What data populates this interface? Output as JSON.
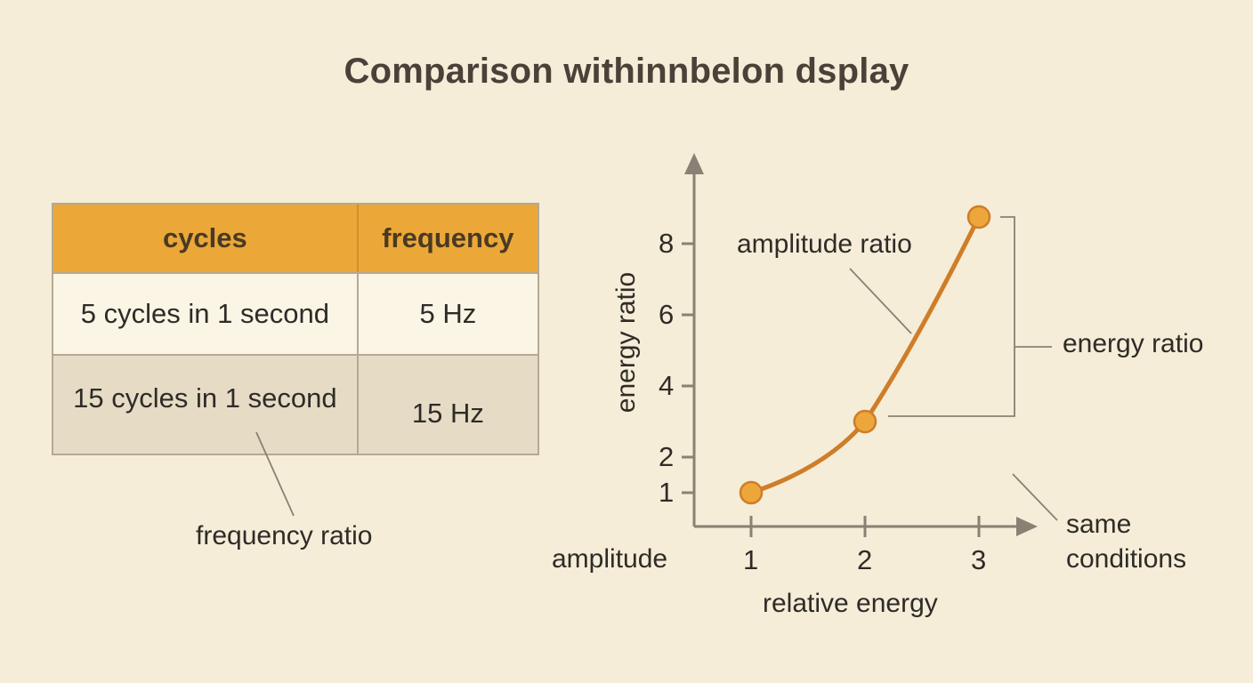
{
  "title": "Comparison withinnbelon dsplay",
  "table": {
    "headers": [
      "cycles",
      "frequency"
    ],
    "rows": [
      [
        "5 cycles in 1 second",
        "5 Hz"
      ],
      [
        "15 cycles in 1 second",
        "15 Hz"
      ]
    ],
    "annotation": "frequency ratio"
  },
  "chart_data": {
    "type": "line",
    "x": [
      1,
      2,
      3
    ],
    "y": [
      1,
      3,
      8.75
    ],
    "xlim": [
      0.5,
      3.5
    ],
    "ylim": [
      0,
      9.5
    ],
    "xticks": [
      "1",
      "2",
      "3"
    ],
    "yticks": [
      "1",
      "2",
      "4",
      "6",
      "8"
    ],
    "xlabel": "relative energy",
    "ylabel": "energy ratio",
    "x_axis_end_label": "amplitude",
    "annotations": {
      "curve": "amplitude ratio",
      "bracket": "energy ratio",
      "note_line1": "same",
      "note_line2": "conditions"
    },
    "colors": {
      "line": "#cf7d28",
      "marker": "#eda63a",
      "axis": "#8a8073"
    }
  }
}
